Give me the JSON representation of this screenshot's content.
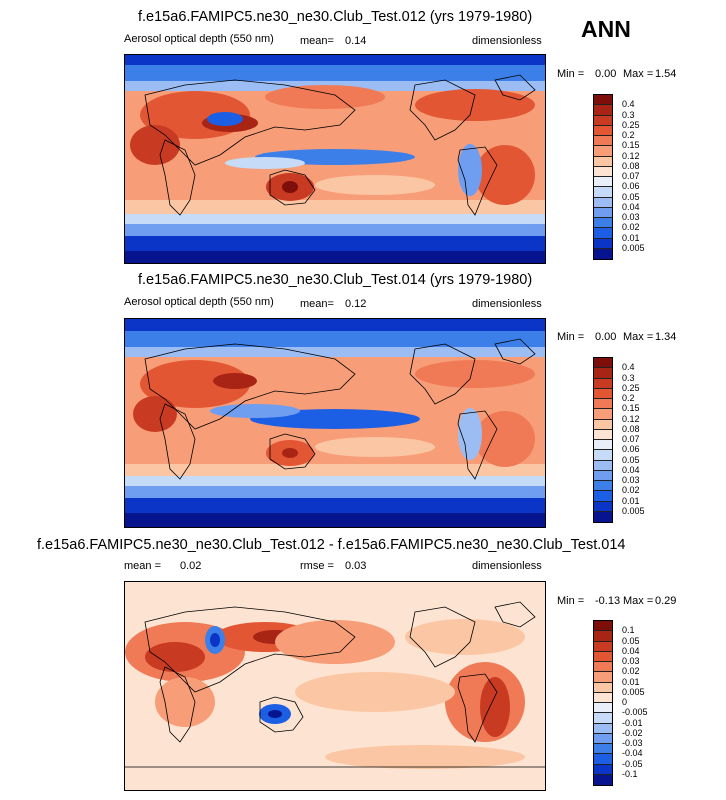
{
  "season": "ANN",
  "colors": {
    "abs": [
      "#07148f",
      "#0a35c6",
      "#1d5fe4",
      "#3d7fe8",
      "#6f9ef0",
      "#9cbdf4",
      "#c6dbf7",
      "#e8eff8",
      "#fde4d2",
      "#fbc6a4",
      "#f79e78",
      "#f07a55",
      "#e25634",
      "#c93a22",
      "#a82415",
      "#7e0e0a"
    ],
    "diff": [
      "#07148f",
      "#0a35c6",
      "#1d5fe4",
      "#3d7fe8",
      "#6f9ef0",
      "#9cbdf4",
      "#c6dbf7",
      "#e8eff8",
      "#fde4d2",
      "#fbc6a4",
      "#f79e78",
      "#f07a55",
      "#e25634",
      "#c93a22",
      "#a82415",
      "#7e0e0a"
    ]
  },
  "chart_data": [
    {
      "type": "heatmap",
      "title": "f.e15a6.FAMIPC5.ne30_ne30.Club_Test.012 (yrs 1979-1980)",
      "left_label": "Aerosol optical depth (550 nm)",
      "mean_label": "mean=",
      "mean_value": "0.14",
      "units": "dimensionless",
      "min_label": "Min =",
      "min_value": "0.00",
      "max_label": "Max =",
      "max_value": "1.54",
      "colorbar_levels": [
        "0.4",
        "0.3",
        "0.25",
        "0.2",
        "0.15",
        "0.12",
        "0.08",
        "0.07",
        "0.06",
        "0.05",
        "0.04",
        "0.03",
        "0.02",
        "0.01",
        "0.005"
      ]
    },
    {
      "type": "heatmap",
      "title": "f.e15a6.FAMIPC5.ne30_ne30.Club_Test.014 (yrs 1979-1980)",
      "left_label": "Aerosol optical depth (550 nm)",
      "mean_label": "mean=",
      "mean_value": "0.12",
      "units": "dimensionless",
      "min_label": "Min =",
      "min_value": "0.00",
      "max_label": "Max =",
      "max_value": "1.34",
      "colorbar_levels": [
        "0.4",
        "0.3",
        "0.25",
        "0.2",
        "0.15",
        "0.12",
        "0.08",
        "0.07",
        "0.06",
        "0.05",
        "0.04",
        "0.03",
        "0.02",
        "0.01",
        "0.005"
      ]
    },
    {
      "type": "heatmap",
      "title": "f.e15a6.FAMIPC5.ne30_ne30.Club_Test.012 - f.e15a6.FAMIPC5.ne30_ne30.Club_Test.014",
      "left_label": "mean =",
      "left_value": "0.02",
      "rmse_label": "rmse =",
      "rmse_value": "0.03",
      "units": "dimensionless",
      "min_label": "Min =",
      "min_value": "-0.13",
      "max_label": "Max =",
      "max_value": "0.29",
      "colorbar_levels": [
        "0.1",
        "0.05",
        "0.04",
        "0.03",
        "0.02",
        "0.01",
        "0.005",
        "0",
        "-0.005",
        "-0.01",
        "-0.02",
        "-0.03",
        "-0.04",
        "-0.05",
        "-0.1"
      ]
    }
  ]
}
